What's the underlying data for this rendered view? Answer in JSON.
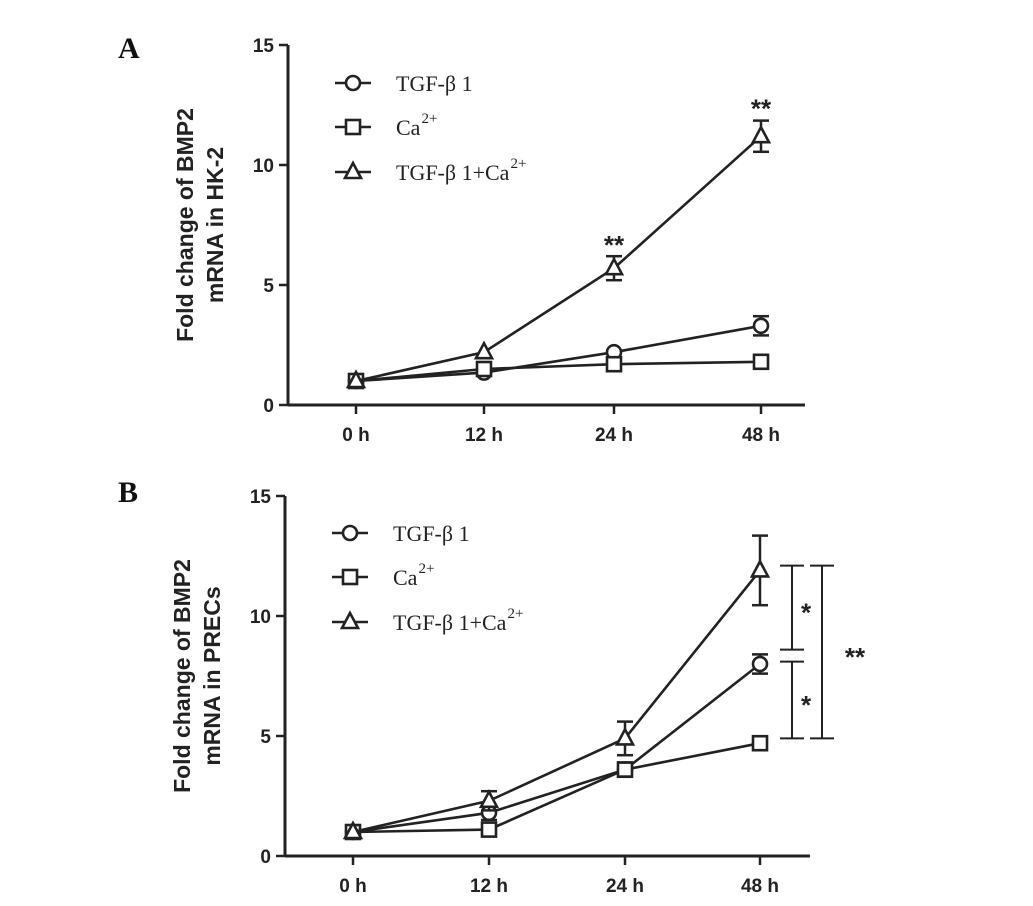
{
  "chart_data": [
    {
      "type": "line",
      "panel_label": "A",
      "ylabel_lines": [
        "Fold change of BMP2",
        "mRNA in HK-2"
      ],
      "xlabel": "",
      "categories": [
        "0 h",
        "12 h",
        "24 h",
        "48 h"
      ],
      "ylim": [
        0,
        15
      ],
      "yticks": [
        "0",
        "5",
        "10",
        "15"
      ],
      "grid": false,
      "legend_position": "top-left",
      "series": [
        {
          "name": "TGF-β 1",
          "marker": "circle",
          "values": [
            1.0,
            1.35,
            2.2,
            3.3
          ],
          "errors": [
            0.1,
            0.1,
            0.15,
            0.4
          ]
        },
        {
          "name": "Ca",
          "name_sup": "2+",
          "marker": "square",
          "values": [
            1.0,
            1.5,
            1.7,
            1.8
          ],
          "errors": [
            0.1,
            0.1,
            0.1,
            0.1
          ]
        },
        {
          "name": "TGF-β 1+Ca ",
          "name_sup": "2+",
          "marker": "triangle",
          "values": [
            1.0,
            2.2,
            5.7,
            11.2
          ],
          "errors": [
            0.1,
            0.15,
            0.5,
            0.65
          ]
        }
      ],
      "annotations": [
        {
          "text": "**",
          "category": "24 h",
          "y": 6.7
        },
        {
          "text": "**",
          "category": "48 h",
          "y": 12.4
        }
      ]
    },
    {
      "type": "line",
      "panel_label": "B",
      "ylabel_lines": [
        "Fold change of BMP2",
        "mRNA in PRECs"
      ],
      "xlabel": "",
      "categories": [
        "0 h",
        "12 h",
        "24 h",
        "48 h"
      ],
      "ylim": [
        0,
        15
      ],
      "yticks": [
        "0",
        "5",
        "10",
        "15"
      ],
      "grid": false,
      "legend_position": "top-left",
      "series": [
        {
          "name": "TGF-β 1",
          "marker": "circle",
          "values": [
            1.0,
            1.8,
            3.6,
            8.0
          ],
          "errors": [
            0.1,
            0.3,
            0.2,
            0.4
          ]
        },
        {
          "name": "Ca",
          "name_sup": "2+",
          "marker": "square",
          "values": [
            1.0,
            1.1,
            3.6,
            4.7
          ],
          "errors": [
            0.1,
            0.1,
            0.3,
            0.1
          ]
        },
        {
          "name": "TGF-β 1+Ca ",
          "name_sup": "2+",
          "marker": "triangle",
          "values": [
            1.0,
            2.3,
            4.9,
            11.9
          ],
          "errors": [
            0.1,
            0.4,
            0.7,
            1.45
          ]
        }
      ],
      "brackets": [
        {
          "text": "*",
          "from": 12.1,
          "to": 8.6
        },
        {
          "text": "*",
          "from": 8.1,
          "to": 4.9
        },
        {
          "text": "**",
          "from": 12.1,
          "to": 4.9
        }
      ]
    }
  ]
}
